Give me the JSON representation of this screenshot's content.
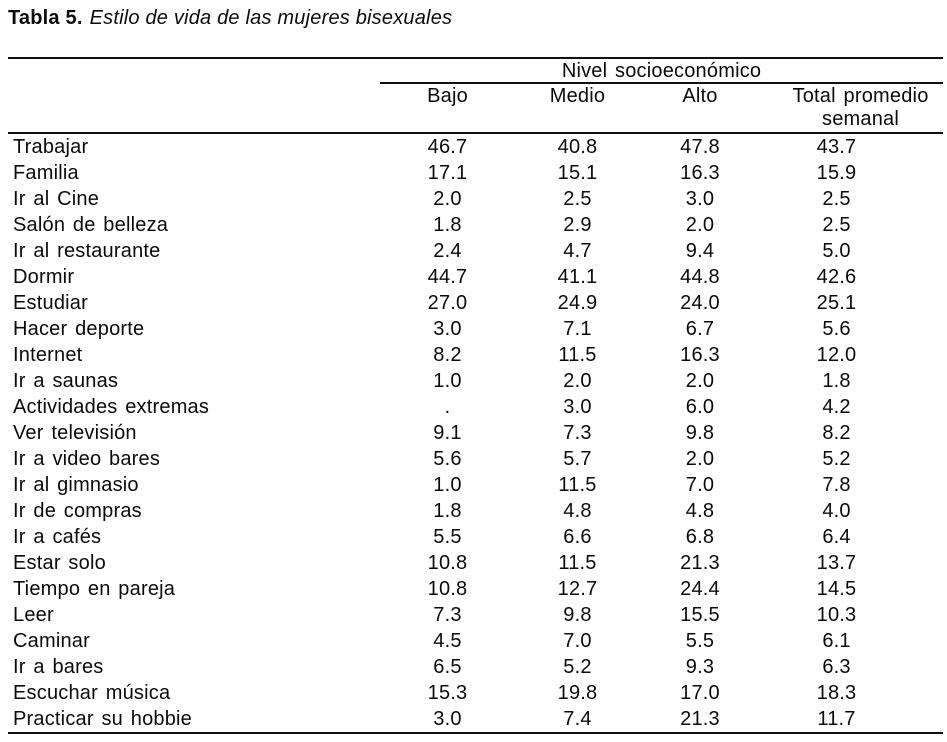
{
  "title": {
    "label": "Tabla 5.",
    "caption": "Estilo de vida de las mujeres bisexuales"
  },
  "table": {
    "group_header": "Nivel socioeconómico",
    "columns": [
      "Bajo",
      "Medio",
      "Alto",
      "Total promedio semanal"
    ],
    "rows": [
      {
        "activity": "Trabajar",
        "values": [
          "46.7",
          "40.8",
          "47.8",
          "43.7"
        ]
      },
      {
        "activity": "Familia",
        "values": [
          "17.1",
          "15.1",
          "16.3",
          "15.9"
        ]
      },
      {
        "activity": "Ir al Cine",
        "values": [
          "2.0",
          "2.5",
          "3.0",
          "2.5"
        ]
      },
      {
        "activity": "Salón de belleza",
        "values": [
          "1.8",
          "2.9",
          "2.0",
          "2.5"
        ]
      },
      {
        "activity": "Ir al restaurante",
        "values": [
          "2.4",
          "4.7",
          "9.4",
          "5.0"
        ]
      },
      {
        "activity": "Dormir",
        "values": [
          "44.7",
          "41.1",
          "44.8",
          "42.6"
        ]
      },
      {
        "activity": "Estudiar",
        "values": [
          "27.0",
          "24.9",
          "24.0",
          "25.1"
        ]
      },
      {
        "activity": "Hacer deporte",
        "values": [
          "3.0",
          "7.1",
          "6.7",
          "5.6"
        ]
      },
      {
        "activity": "Internet",
        "values": [
          "8.2",
          "11.5",
          "16.3",
          "12.0"
        ]
      },
      {
        "activity": "Ir a saunas",
        "values": [
          "1.0",
          "2.0",
          "2.0",
          "1.8"
        ]
      },
      {
        "activity": "Actividades extremas",
        "values": [
          ".",
          "3.0",
          "6.0",
          "4.2"
        ]
      },
      {
        "activity": "Ver televisión",
        "values": [
          "9.1",
          "7.3",
          "9.8",
          "8.2"
        ]
      },
      {
        "activity": "Ir a video bares",
        "values": [
          "5.6",
          "5.7",
          "2.0",
          "5.2"
        ]
      },
      {
        "activity": "Ir al gimnasio",
        "values": [
          "1.0",
          "11.5",
          "7.0",
          "7.8"
        ]
      },
      {
        "activity": "Ir de compras",
        "values": [
          "1.8",
          "4.8",
          "4.8",
          "4.0"
        ]
      },
      {
        "activity": "Ir a cafés",
        "values": [
          "5.5",
          "6.6",
          "6.8",
          "6.4"
        ]
      },
      {
        "activity": "Estar solo",
        "values": [
          "10.8",
          "11.5",
          "21.3",
          "13.7"
        ]
      },
      {
        "activity": "Tiempo en pareja",
        "values": [
          "10.8",
          "12.7",
          "24.4",
          "14.5"
        ]
      },
      {
        "activity": "Leer",
        "values": [
          "7.3",
          "9.8",
          "15.5",
          "10.3"
        ]
      },
      {
        "activity": "Caminar",
        "values": [
          "4.5",
          "7.0",
          "5.5",
          "6.1"
        ]
      },
      {
        "activity": "Ir a bares",
        "values": [
          "6.5",
          "5.2",
          "9.3",
          "6.3"
        ]
      },
      {
        "activity": "Escuchar música",
        "values": [
          "15.3",
          "19.8",
          "17.0",
          "18.3"
        ]
      },
      {
        "activity": "Practicar su hobbie",
        "values": [
          "3.0",
          "7.4",
          "21.3",
          "11.7"
        ]
      }
    ]
  }
}
